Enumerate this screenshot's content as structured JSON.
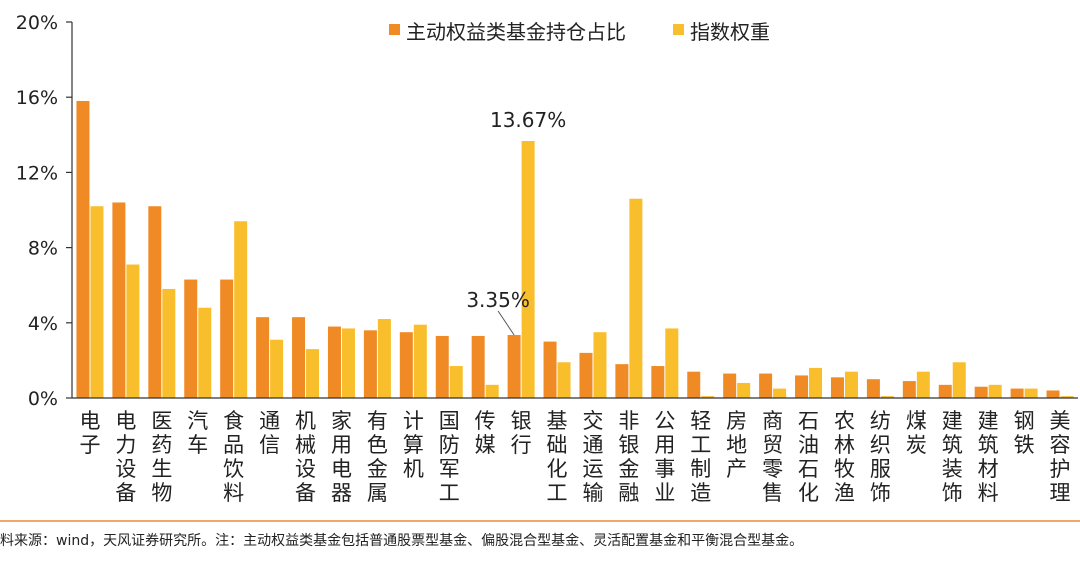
{
  "chart_data": {
    "type": "bar",
    "categories": [
      "电子",
      "电力设备",
      "医药生物",
      "汽车",
      "食品饮料",
      "通信",
      "机械设备",
      "家用电器",
      "有色金属",
      "计算机",
      "国防军工",
      "传媒",
      "银行",
      "基础化工",
      "交通运输",
      "非银金融",
      "公用事业",
      "轻工制造",
      "房地产",
      "商贸零售",
      "石油石化",
      "农林牧渔",
      "纺织服饰",
      "煤炭",
      "建筑装饰",
      "建筑材料",
      "钢铁",
      "美容护理"
    ],
    "series": [
      {
        "name": "主动权益类基金持仓占比",
        "color": "#f08a24",
        "values": [
          15.8,
          10.4,
          10.2,
          6.3,
          6.3,
          4.3,
          4.3,
          3.8,
          3.6,
          3.5,
          3.3,
          3.3,
          3.35,
          3.0,
          2.4,
          1.8,
          1.7,
          1.4,
          1.3,
          1.3,
          1.2,
          1.1,
          1.0,
          0.9,
          0.7,
          0.6,
          0.5,
          0.4
        ]
      },
      {
        "name": "指数权重",
        "color": "#f8be2c",
        "values": [
          10.2,
          7.1,
          5.8,
          4.8,
          9.4,
          3.1,
          2.6,
          3.7,
          4.2,
          3.9,
          1.7,
          0.7,
          13.67,
          1.9,
          3.5,
          10.6,
          3.7,
          0.1,
          0.8,
          0.5,
          1.6,
          1.4,
          0.1,
          1.4,
          1.9,
          0.7,
          0.5,
          0.1
        ]
      }
    ],
    "y_ticks": [
      "0%",
      "4%",
      "8%",
      "12%",
      "16%",
      "20%"
    ],
    "ylim": [
      0,
      20
    ],
    "grid": false,
    "legend_position": "top-center",
    "annotations": [
      {
        "text": "13.67%",
        "category": "银行",
        "series": 1,
        "value": 13.67
      },
      {
        "text": "3.35%",
        "category": "银行",
        "series": 0,
        "value": 3.35
      }
    ],
    "title": "",
    "xlabel": "",
    "ylabel": ""
  },
  "footer": {
    "source_note": "资料来源：wind，天风证券研究所。注：主动权益类基金包括普通股票型基金、偏股混合型基金、灵活配置基金和平衡混合型基金。"
  }
}
